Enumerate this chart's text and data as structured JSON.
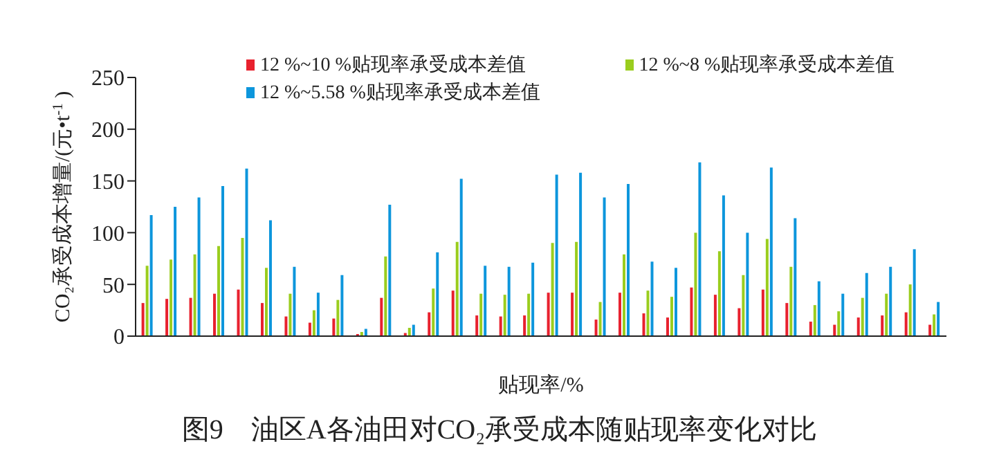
{
  "chart_data": {
    "type": "bar",
    "title": "图9　油区A各油田对CO₂承受成本随贴现率变化对比",
    "xlabel": "贴现率/%",
    "ylabel": "CO₂承受成本增量/(元•t$^{-1}$)",
    "categories": [
      null,
      null,
      null,
      null,
      null,
      null,
      null,
      null,
      null,
      null,
      null,
      null,
      null,
      null,
      null,
      null,
      null,
      null,
      null,
      null,
      null,
      null,
      null,
      null,
      null,
      null,
      null,
      null,
      null,
      null,
      null,
      null,
      null,
      null
    ],
    "series": [
      {
        "name": "12 %~10 %贴现率承受成本差值",
        "color": "#e8212e",
        "values": [
          32,
          36,
          37,
          41,
          45,
          32,
          19,
          13,
          17,
          2,
          37,
          3,
          23,
          44,
          20,
          19,
          20,
          42,
          42,
          16,
          42,
          22,
          18,
          47,
          40,
          27,
          45,
          32,
          14,
          11,
          18,
          20,
          23,
          11
        ]
      },
      {
        "name": "12 %~8 %贴现率承受成本差值",
        "color": "#9acd1e",
        "values": [
          68,
          74,
          79,
          87,
          95,
          66,
          41,
          25,
          35,
          4,
          77,
          8,
          46,
          91,
          41,
          40,
          41,
          90,
          91,
          33,
          79,
          44,
          38,
          100,
          82,
          59,
          94,
          67,
          30,
          24,
          37,
          41,
          50,
          21
        ]
      },
      {
        "name": "12 %~5.58 %贴现率承受成本差值",
        "color": "#0d96dc",
        "values": [
          117,
          125,
          134,
          145,
          162,
          112,
          67,
          42,
          59,
          7,
          127,
          11,
          81,
          152,
          68,
          67,
          71,
          156,
          158,
          134,
          147,
          72,
          66,
          168,
          136,
          100,
          163,
          114,
          53,
          41,
          61,
          67,
          84,
          33
        ]
      }
    ],
    "ylim": [
      0,
      250
    ],
    "yticks": [
      0,
      50,
      100,
      150,
      200,
      250
    ],
    "grid": false,
    "legend": "top"
  }
}
